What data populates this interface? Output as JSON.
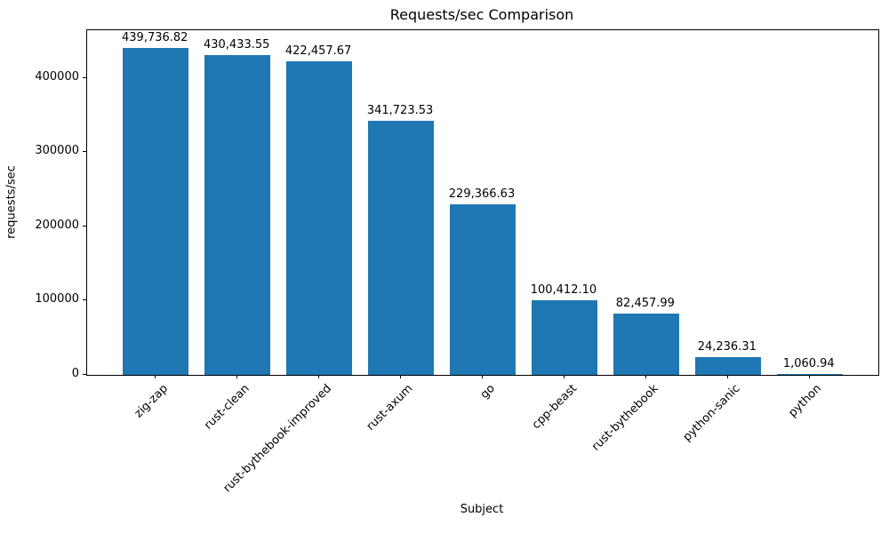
{
  "chart_data": {
    "type": "bar",
    "title": "Requests/sec Comparison",
    "xlabel": "Subject",
    "ylabel": "requests/sec",
    "categories": [
      "zig-zap",
      "rust-clean",
      "rust-bythebook-improved",
      "rust-axum",
      "go",
      "cpp-beast",
      "rust-bythebook",
      "python-sanic",
      "python"
    ],
    "values": [
      439736.82,
      430433.55,
      422457.67,
      341723.53,
      229366.63,
      100412.1,
      82457.99,
      24236.31,
      1060.94
    ],
    "value_labels": [
      "439,736.82",
      "430,433.55",
      "422,457.67",
      "341,723.53",
      "229,366.63",
      "100,412.10",
      "82,457.99",
      "24,236.31",
      "1,060.94"
    ],
    "yticks": [
      0,
      100000,
      200000,
      300000,
      400000
    ],
    "ytick_labels": [
      "0",
      "100000",
      "200000",
      "300000",
      "400000"
    ],
    "ylim": [
      0,
      464000
    ],
    "bar_color": "#1f77b4",
    "bar_width_fraction": 0.8,
    "grid": false,
    "legend": null,
    "tick_label_rotation_deg": 45
  }
}
